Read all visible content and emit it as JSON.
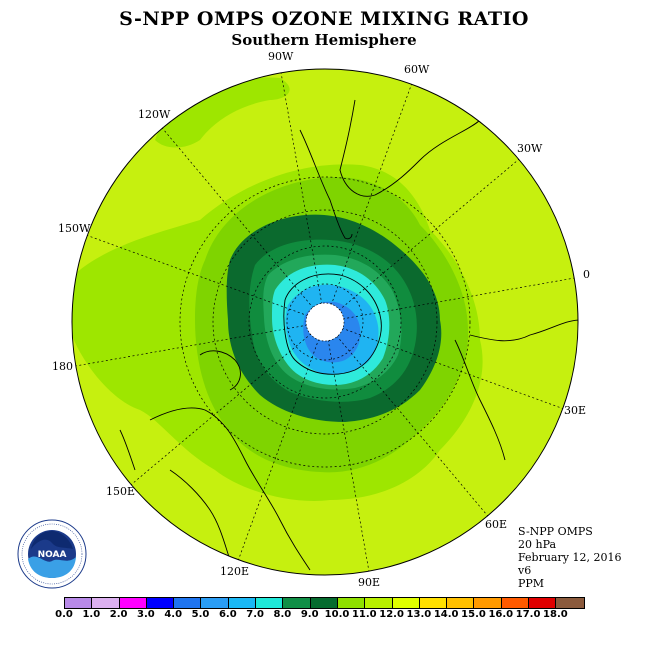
{
  "title": "S-NPP OMPS OZONE MIXING RATIO",
  "subtitle": "Southern Hemisphere",
  "longitude_labels": [
    "90W",
    "60W",
    "30W",
    "0",
    "30E",
    "60E",
    "90E",
    "120E",
    "150E",
    "180",
    "150W",
    "120W"
  ],
  "info": {
    "instrument": "S-NPP OMPS",
    "level": "20 hPa",
    "date": "February 12, 2016",
    "version": "v6",
    "units": "PPM"
  },
  "logo": {
    "text": "NOAA",
    "ring_text": "NATIONAL OCEANIC AND ATMOSPHERIC ADMINISTRATION · U.S. DEPARTMENT OF COMMERCE"
  },
  "colorbar": {
    "labels": [
      "0.0",
      "1.0",
      "2.0",
      "3.0",
      "4.0",
      "5.0",
      "6.0",
      "7.0",
      "8.0",
      "9.0",
      "10.0",
      "11.0",
      "12.0",
      "13.0",
      "14.0",
      "15.0",
      "16.0",
      "17.0",
      "18.0"
    ],
    "colors": [
      "#b88ae8",
      "#dcb0f0",
      "#ff00ff",
      "#0000ff",
      "#1e74f0",
      "#2a9df5",
      "#1ab8f5",
      "#1ee8d8",
      "#0f8f46",
      "#056b2e",
      "#8fe000",
      "#b8f000",
      "#e0ff00",
      "#ffe000",
      "#ffc000",
      "#ff9a00",
      "#ff5a00",
      "#e00000",
      "#8b5a3c"
    ]
  },
  "map_colors": {
    "background": "#c6f00f",
    "ring_11_12": "#9ee600",
    "ring_10_11": "#7fd400",
    "ring_9_10": "#0b6a2e",
    "ring_8_9": "#108c3e",
    "ring_7_8": "#22a85a",
    "ring_6_7": "#2eeadb",
    "ring_5_6": "#1fb4f2",
    "ring_4_5": "#2a86ee"
  }
}
